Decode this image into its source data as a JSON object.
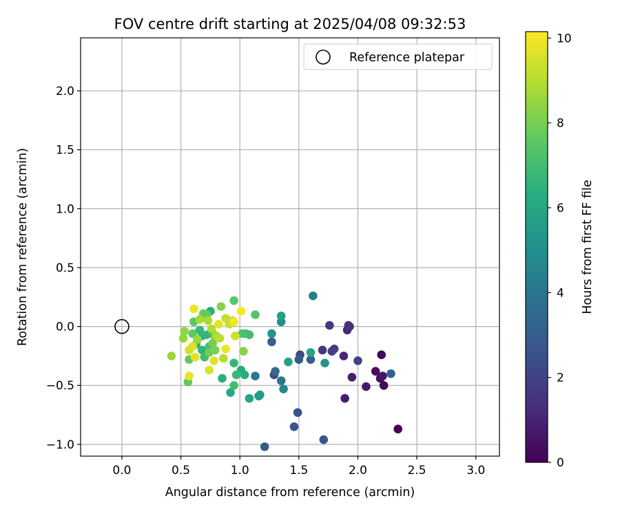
{
  "chart_data": {
    "type": "scatter",
    "title": "FOV centre drift starting at 2025/04/08 09:32:53",
    "xlabel": "Angular distance from reference (arcmin)",
    "ylabel": "Rotation from reference (arcmin)",
    "xlim": [
      -0.35,
      3.2
    ],
    "ylim": [
      -1.1,
      2.45
    ],
    "xticks": [
      0.0,
      0.5,
      1.0,
      1.5,
      2.0,
      2.5,
      3.0
    ],
    "xtick_labels": [
      "0.0",
      "0.5",
      "1.0",
      "1.5",
      "2.0",
      "2.5",
      "3.0"
    ],
    "yticks": [
      -1.0,
      -0.5,
      0.0,
      0.5,
      1.0,
      1.5,
      2.0
    ],
    "ytick_labels": [
      "−1.0",
      "−0.5",
      "0.0",
      "0.5",
      "1.0",
      "1.5",
      "2.0"
    ],
    "grid": true,
    "legend_position": "top-right",
    "legend_entries": [
      "Reference platepar"
    ],
    "reference_point": {
      "x": 0.0,
      "y": 0.0
    },
    "colorbar": {
      "label": "Hours from first FF file",
      "range": [
        0,
        10.15
      ],
      "ticks": [
        0,
        2,
        4,
        6,
        8,
        10
      ],
      "tick_labels": [
        "0",
        "2",
        "4",
        "6",
        "8",
        "10"
      ],
      "colormap": "viridis"
    },
    "points": [
      {
        "x": 2.34,
        "y": -0.87,
        "t": 0.1
      },
      {
        "x": 2.2,
        "y": -0.24,
        "t": 0.2
      },
      {
        "x": 2.22,
        "y": -0.5,
        "t": 0.3
      },
      {
        "x": 2.15,
        "y": -0.38,
        "t": 0.4
      },
      {
        "x": 2.19,
        "y": -0.44,
        "t": 0.5
      },
      {
        "x": 2.21,
        "y": -0.42,
        "t": 0.6
      },
      {
        "x": 2.07,
        "y": -0.51,
        "t": 0.7
      },
      {
        "x": 1.89,
        "y": -0.61,
        "t": 0.8
      },
      {
        "x": 1.95,
        "y": -0.43,
        "t": 0.9
      },
      {
        "x": 1.88,
        "y": -0.25,
        "t": 1.1
      },
      {
        "x": 1.91,
        "y": -0.03,
        "t": 1.2
      },
      {
        "x": 1.93,
        "y": 0.0,
        "t": 1.3
      },
      {
        "x": 1.92,
        "y": 0.01,
        "t": 1.4
      },
      {
        "x": 1.76,
        "y": 0.01,
        "t": 1.6
      },
      {
        "x": 1.7,
        "y": -0.2,
        "t": 1.7
      },
      {
        "x": 1.8,
        "y": -0.19,
        "t": 1.8
      },
      {
        "x": 1.78,
        "y": -0.21,
        "t": 1.9
      },
      {
        "x": 2.0,
        "y": -0.29,
        "t": 2.0
      },
      {
        "x": 1.51,
        "y": -0.24,
        "t": 2.2
      },
      {
        "x": 1.29,
        "y": -0.41,
        "t": 2.3
      },
      {
        "x": 1.49,
        "y": -0.73,
        "t": 2.5
      },
      {
        "x": 1.46,
        "y": -0.85,
        "t": 2.6
      },
      {
        "x": 1.71,
        "y": -0.96,
        "t": 2.7
      },
      {
        "x": 1.21,
        "y": -1.02,
        "t": 2.8
      },
      {
        "x": 1.5,
        "y": -0.28,
        "t": 2.9
      },
      {
        "x": 1.6,
        "y": -0.28,
        "t": 3.0
      },
      {
        "x": 1.27,
        "y": -0.13,
        "t": 3.1
      },
      {
        "x": 2.28,
        "y": -0.4,
        "t": 3.2
      },
      {
        "x": 1.3,
        "y": -0.38,
        "t": 3.5
      },
      {
        "x": 1.35,
        "y": -0.46,
        "t": 3.9
      },
      {
        "x": 1.13,
        "y": -0.42,
        "t": 4.1
      },
      {
        "x": 1.62,
        "y": 0.26,
        "t": 4.3
      },
      {
        "x": 1.37,
        "y": -0.53,
        "t": 4.6
      },
      {
        "x": 1.35,
        "y": 0.04,
        "t": 4.9
      },
      {
        "x": 1.27,
        "y": -0.06,
        "t": 5.2
      },
      {
        "x": 1.72,
        "y": -0.31,
        "t": 5.4
      },
      {
        "x": 1.16,
        "y": -0.59,
        "t": 5.5
      },
      {
        "x": 1.17,
        "y": -0.58,
        "t": 5.6
      },
      {
        "x": 1.35,
        "y": 0.09,
        "t": 5.7
      },
      {
        "x": 1.41,
        "y": -0.3,
        "t": 5.8
      },
      {
        "x": 1.6,
        "y": -0.22,
        "t": 5.9
      },
      {
        "x": 1.08,
        "y": -0.61,
        "t": 6.0
      },
      {
        "x": 0.92,
        "y": -0.56,
        "t": 6.1
      },
      {
        "x": 1.04,
        "y": -0.41,
        "t": 6.2
      },
      {
        "x": 1.01,
        "y": -0.37,
        "t": 6.3
      },
      {
        "x": 0.85,
        "y": -0.44,
        "t": 6.4
      },
      {
        "x": 0.75,
        "y": 0.13,
        "t": 6.3
      },
      {
        "x": 0.68,
        "y": -0.08,
        "t": 6.5
      },
      {
        "x": 0.63,
        "y": -0.15,
        "t": 6.6
      },
      {
        "x": 0.95,
        "y": -0.31,
        "t": 6.7
      },
      {
        "x": 0.97,
        "y": -0.41,
        "t": 6.8
      },
      {
        "x": 1.08,
        "y": -0.07,
        "t": 6.9
      },
      {
        "x": 0.95,
        "y": -0.5,
        "t": 7.0
      },
      {
        "x": 0.68,
        "y": -0.2,
        "t": 6.6
      },
      {
        "x": 0.72,
        "y": -0.07,
        "t": 6.7
      },
      {
        "x": 0.66,
        "y": -0.03,
        "t": 6.8
      },
      {
        "x": 0.7,
        "y": -0.26,
        "t": 7.0
      },
      {
        "x": 0.74,
        "y": -0.17,
        "t": 7.1
      },
      {
        "x": 0.78,
        "y": -0.07,
        "t": 7.2
      },
      {
        "x": 1.02,
        "y": -0.06,
        "t": 7.3
      },
      {
        "x": 1.05,
        "y": -0.06,
        "t": 7.1
      },
      {
        "x": 1.13,
        "y": 0.1,
        "t": 7.4
      },
      {
        "x": 0.95,
        "y": 0.22,
        "t": 7.5
      },
      {
        "x": 0.56,
        "y": -0.47,
        "t": 7.6
      },
      {
        "x": 0.57,
        "y": -0.28,
        "t": 7.7
      },
      {
        "x": 0.61,
        "y": 0.04,
        "t": 7.5
      },
      {
        "x": 0.6,
        "y": -0.06,
        "t": 7.6
      },
      {
        "x": 0.69,
        "y": 0.11,
        "t": 7.8
      },
      {
        "x": 0.72,
        "y": 0.1,
        "t": 7.7
      },
      {
        "x": 0.74,
        "y": -0.22,
        "t": 7.9
      },
      {
        "x": 0.77,
        "y": -0.14,
        "t": 8.0
      },
      {
        "x": 0.79,
        "y": -0.2,
        "t": 8.1
      },
      {
        "x": 0.84,
        "y": 0.17,
        "t": 8.2
      },
      {
        "x": 1.03,
        "y": -0.21,
        "t": 8.3
      },
      {
        "x": 0.53,
        "y": -0.04,
        "t": 8.4
      },
      {
        "x": 0.52,
        "y": -0.1,
        "t": 8.5
      },
      {
        "x": 0.64,
        "y": -0.11,
        "t": 8.6
      },
      {
        "x": 0.66,
        "y": 0.06,
        "t": 8.7
      },
      {
        "x": 0.73,
        "y": 0.05,
        "t": 8.8
      },
      {
        "x": 0.76,
        "y": -0.02,
        "t": 8.9
      },
      {
        "x": 0.8,
        "y": -0.08,
        "t": 9.0
      },
      {
        "x": 0.83,
        "y": -0.1,
        "t": 9.1
      },
      {
        "x": 0.86,
        "y": -0.27,
        "t": 9.0
      },
      {
        "x": 0.88,
        "y": 0.07,
        "t": 9.2
      },
      {
        "x": 0.91,
        "y": 0.02,
        "t": 9.3
      },
      {
        "x": 0.94,
        "y": 0.05,
        "t": 9.2
      },
      {
        "x": 0.96,
        "y": -0.08,
        "t": 9.4
      },
      {
        "x": 0.42,
        "y": -0.25,
        "t": 8.6
      },
      {
        "x": 0.57,
        "y": -0.2,
        "t": 9.5
      },
      {
        "x": 0.6,
        "y": -0.17,
        "t": 9.6
      },
      {
        "x": 0.62,
        "y": -0.26,
        "t": 9.7
      },
      {
        "x": 0.57,
        "y": -0.42,
        "t": 9.8
      },
      {
        "x": 0.61,
        "y": 0.15,
        "t": 9.9
      },
      {
        "x": 0.74,
        "y": -0.37,
        "t": 9.6
      },
      {
        "x": 0.78,
        "y": -0.29,
        "t": 9.7
      },
      {
        "x": 0.82,
        "y": 0.02,
        "t": 9.8
      },
      {
        "x": 0.88,
        "y": -0.19,
        "t": 9.9
      },
      {
        "x": 0.95,
        "y": 0.04,
        "t": 10.0
      },
      {
        "x": 1.01,
        "y": 0.13,
        "t": 10.1
      }
    ]
  }
}
